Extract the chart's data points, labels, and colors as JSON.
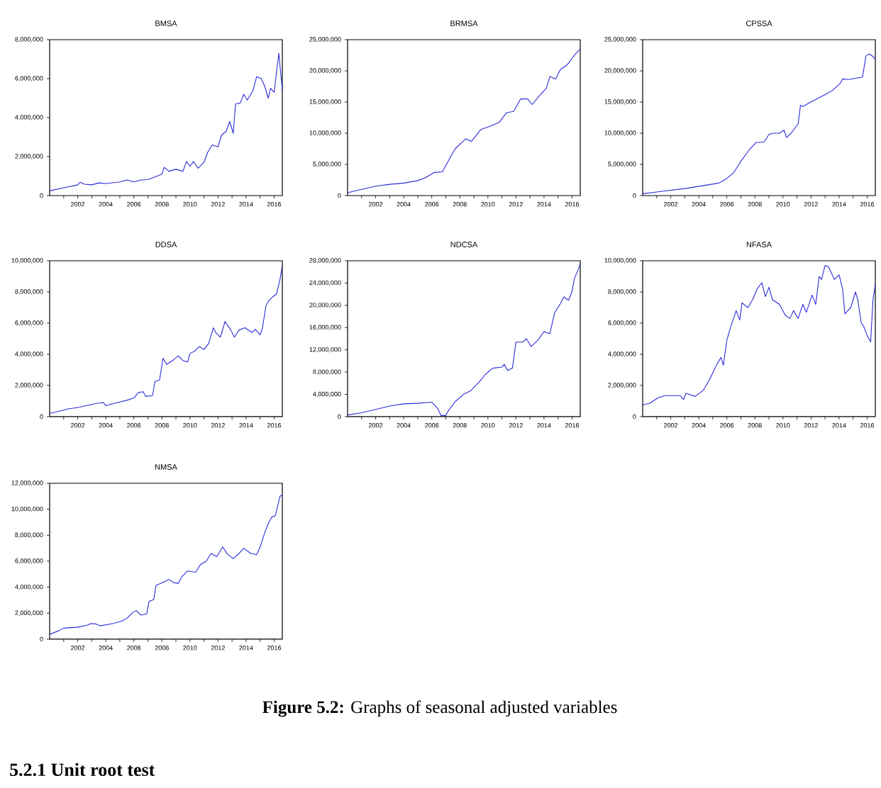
{
  "chart_data": [
    {
      "type": "line",
      "title": "BMSA",
      "color": "#2b2bd9",
      "xlim": [
        "2000-01",
        "2016-08"
      ],
      "ylim": [
        0,
        8000000
      ],
      "xticks": [
        {
          "value": "2001",
          "label": null
        },
        {
          "value": "2002",
          "label": "2002"
        },
        {
          "value": "2003",
          "label": null
        },
        {
          "value": "2004",
          "label": "2004"
        },
        {
          "value": "2005",
          "label": null
        },
        {
          "value": "2006",
          "label": "2006"
        },
        {
          "value": "2007",
          "label": null
        },
        {
          "value": "2008",
          "label": "2008"
        },
        {
          "value": "2009",
          "label": null
        },
        {
          "value": "2010",
          "label": "2010"
        },
        {
          "value": "2011",
          "label": null
        },
        {
          "value": "2012",
          "label": "2012"
        },
        {
          "value": "2013",
          "label": null
        },
        {
          "value": "2014",
          "label": "2014"
        },
        {
          "value": "2015",
          "label": null
        },
        {
          "value": "2016",
          "label": "2016"
        }
      ],
      "yticks": [
        0,
        {
          "value": 2000000,
          "label": "2,000,000"
        },
        {
          "value": 4000000,
          "label": "4,000,000"
        },
        {
          "value": 6000000,
          "label": "6,000,000"
        },
        {
          "value": 8000000,
          "label": "8,000,000"
        }
      ],
      "x": [
        "2000-01",
        "2001-01",
        "2002-01",
        "2002-03",
        "2002-07",
        "2003-01",
        "2003-07",
        "2004-01",
        "2005-01",
        "2005-07",
        "2006-01",
        "2006-07",
        "2007-01",
        "2007-07",
        "2008-01",
        "2008-03",
        "2008-07",
        "2009-01",
        "2009-07",
        "2009-10",
        "2010-01",
        "2010-04",
        "2010-08",
        "2011-01",
        "2011-04",
        "2011-08",
        "2012-01",
        "2012-04",
        "2012-08",
        "2012-11",
        "2013-02",
        "2013-04",
        "2013-08",
        "2013-11",
        "2014-02",
        "2014-07",
        "2014-10",
        "2015-02",
        "2015-05",
        "2015-08",
        "2015-10",
        "2016-01",
        "2016-05",
        "2016-08"
      ],
      "values": [
        240000,
        400000,
        550000,
        680000,
        580000,
        550000,
        650000,
        620000,
        700000,
        800000,
        700000,
        800000,
        820000,
        950000,
        1100000,
        1450000,
        1250000,
        1350000,
        1250000,
        1750000,
        1500000,
        1750000,
        1400000,
        1700000,
        2200000,
        2600000,
        2500000,
        3100000,
        3300000,
        3800000,
        3200000,
        4700000,
        4750000,
        5200000,
        4900000,
        5400000,
        6100000,
        6000000,
        5600000,
        5000000,
        5500000,
        5300000,
        7300000,
        5400000
      ]
    },
    {
      "type": "line",
      "title": "BRMSA",
      "color": "#2b2bd9",
      "xlim": [
        "2000-01",
        "2016-08"
      ],
      "ylim": [
        0,
        25000000
      ],
      "xticks": [
        {
          "value": "2001",
          "label": null
        },
        {
          "value": "2002",
          "label": "2002"
        },
        {
          "value": "2003",
          "label": null
        },
        {
          "value": "2004",
          "label": "2004"
        },
        {
          "value": "2005",
          "label": null
        },
        {
          "value": "2006",
          "label": "2006"
        },
        {
          "value": "2007",
          "label": null
        },
        {
          "value": "2008",
          "label": "2008"
        },
        {
          "value": "2009",
          "label": null
        },
        {
          "value": "2010",
          "label": "2010"
        },
        {
          "value": "2011",
          "label": null
        },
        {
          "value": "2012",
          "label": "2012"
        },
        {
          "value": "2013",
          "label": null
        },
        {
          "value": "2014",
          "label": "2014"
        },
        {
          "value": "2015",
          "label": null
        },
        {
          "value": "2016",
          "label": "2016"
        }
      ],
      "yticks": [
        0,
        {
          "value": 5000000,
          "label": "5,000,000"
        },
        {
          "value": 10000000,
          "label": "10,000,000"
        },
        {
          "value": 15000000,
          "label": "15,000,000"
        },
        {
          "value": 20000000,
          "label": "20,000,000"
        },
        {
          "value": 25000000,
          "label": "25,000,000"
        }
      ],
      "x": [
        "2000-01",
        "2001-01",
        "2002-01",
        "2003-01",
        "2004-01",
        "2005-01",
        "2005-07",
        "2006-03",
        "2006-10",
        "2007-03",
        "2007-09",
        "2008-06",
        "2008-11",
        "2009-07",
        "2010-04",
        "2010-11",
        "2011-05",
        "2011-11",
        "2012-05",
        "2012-11",
        "2013-03",
        "2013-09",
        "2014-03",
        "2014-06",
        "2014-11",
        "2015-03",
        "2015-09",
        "2016-03",
        "2016-08"
      ],
      "values": [
        450000,
        1000000,
        1500000,
        1800000,
        2000000,
        2400000,
        2800000,
        3700000,
        3800000,
        5500000,
        7500000,
        9100000,
        8700000,
        10600000,
        11200000,
        11800000,
        13300000,
        13500000,
        15500000,
        15500000,
        14600000,
        16000000,
        17200000,
        19100000,
        18700000,
        20200000,
        21000000,
        22500000,
        23500000
      ]
    },
    {
      "type": "line",
      "title": "CPSSA",
      "color": "#2b2bd9",
      "xlim": [
        "2000-01",
        "2016-08"
      ],
      "ylim": [
        0,
        25000000
      ],
      "xticks": [
        {
          "value": "2001",
          "label": null
        },
        {
          "value": "2002",
          "label": "2002"
        },
        {
          "value": "2003",
          "label": null
        },
        {
          "value": "2004",
          "label": "2004"
        },
        {
          "value": "2005",
          "label": null
        },
        {
          "value": "2006",
          "label": "2006"
        },
        {
          "value": "2007",
          "label": null
        },
        {
          "value": "2008",
          "label": "2008"
        },
        {
          "value": "2009",
          "label": null
        },
        {
          "value": "2010",
          "label": "2010"
        },
        {
          "value": "2011",
          "label": null
        },
        {
          "value": "2012",
          "label": "2012"
        },
        {
          "value": "2013",
          "label": null
        },
        {
          "value": "2014",
          "label": "2014"
        },
        {
          "value": "2015",
          "label": null
        },
        {
          "value": "2016",
          "label": "2016"
        }
      ],
      "yticks": [
        0,
        {
          "value": 5000000,
          "label": "5,000,000"
        },
        {
          "value": 10000000,
          "label": "10,000,000"
        },
        {
          "value": 15000000,
          "label": "15,000,000"
        },
        {
          "value": 20000000,
          "label": "20,000,000"
        },
        {
          "value": 25000000,
          "label": "25,000,000"
        }
      ],
      "x": [
        "2000-01",
        "2001-02",
        "2002-03",
        "2003-04",
        "2004-05",
        "2005-06",
        "2005-12",
        "2006-07",
        "2007-01",
        "2007-08",
        "2008-02",
        "2008-09",
        "2009-01",
        "2009-05",
        "2009-10",
        "2010-02",
        "2010-04",
        "2010-08",
        "2011-02",
        "2011-04",
        "2011-06",
        "2011-12",
        "2012-06",
        "2013-01",
        "2013-07",
        "2014-02",
        "2014-04",
        "2014-09",
        "2015-03",
        "2015-09",
        "2015-12",
        "2016-03",
        "2016-06",
        "2016-08"
      ],
      "values": [
        300000,
        600000,
        900000,
        1200000,
        1600000,
        2000000,
        2600000,
        3700000,
        5500000,
        7300000,
        8500000,
        8600000,
        9800000,
        10000000,
        10000000,
        10500000,
        9300000,
        10000000,
        11500000,
        14500000,
        14300000,
        14900000,
        15500000,
        16200000,
        16800000,
        18000000,
        18700000,
        18600000,
        18800000,
        19000000,
        22400000,
        22700000,
        22300000,
        21800000
      ]
    },
    {
      "type": "line",
      "title": "DDSA",
      "color": "#2b2bd9",
      "xlim": [
        "2000-01",
        "2016-08"
      ],
      "ylim": [
        0,
        10000000
      ],
      "xticks": [
        {
          "value": "2001",
          "label": null
        },
        {
          "value": "2002",
          "label": "2002"
        },
        {
          "value": "2003",
          "label": null
        },
        {
          "value": "2004",
          "label": "2004"
        },
        {
          "value": "2005",
          "label": null
        },
        {
          "value": "2006",
          "label": "2006"
        },
        {
          "value": "2007",
          "label": null
        },
        {
          "value": "2008",
          "label": "2008"
        },
        {
          "value": "2009",
          "label": null
        },
        {
          "value": "2010",
          "label": "2010"
        },
        {
          "value": "2011",
          "label": null
        },
        {
          "value": "2012",
          "label": "2012"
        },
        {
          "value": "2013",
          "label": null
        },
        {
          "value": "2014",
          "label": "2014"
        },
        {
          "value": "2015",
          "label": null
        },
        {
          "value": "2016",
          "label": "2016"
        }
      ],
      "yticks": [
        0,
        {
          "value": 2000000,
          "label": "2,000,000"
        },
        {
          "value": 4000000,
          "label": "4,000,000"
        },
        {
          "value": 6000000,
          "label": "6,000,000"
        },
        {
          "value": 8000000,
          "label": "8,000,000"
        },
        {
          "value": 10000000,
          "label": "10,000,000"
        }
      ],
      "x": [
        "2000-01",
        "2001-05",
        "2002-02",
        "2002-11",
        "2003-05",
        "2003-11",
        "2004-01",
        "2004-08",
        "2005-07",
        "2006-01",
        "2006-05",
        "2006-09",
        "2006-11",
        "2007-05",
        "2007-07",
        "2007-11",
        "2008-02",
        "2008-05",
        "2008-11",
        "2009-03",
        "2009-07",
        "2009-11",
        "2010-01",
        "2010-05",
        "2010-09",
        "2011-01",
        "2011-05",
        "2011-09",
        "2011-11",
        "2012-03",
        "2012-07",
        "2012-12",
        "2013-03",
        "2013-07",
        "2013-12",
        "2014-06",
        "2014-09",
        "2015-01",
        "2015-03",
        "2015-06",
        "2015-08",
        "2015-12",
        "2016-03",
        "2016-06",
        "2016-08"
      ],
      "values": [
        200000,
        500000,
        600000,
        750000,
        850000,
        900000,
        700000,
        850000,
        1050000,
        1200000,
        1550000,
        1600000,
        1300000,
        1350000,
        2250000,
        2350000,
        3750000,
        3350000,
        3650000,
        3900000,
        3600000,
        3500000,
        4050000,
        4200000,
        4500000,
        4300000,
        4700000,
        5700000,
        5400000,
        5100000,
        6100000,
        5550000,
        5100000,
        5550000,
        5700000,
        5400000,
        5600000,
        5250000,
        5700000,
        7100000,
        7400000,
        7700000,
        7850000,
        8800000,
        9700000
      ]
    },
    {
      "type": "line",
      "title": "NDCSA",
      "color": "#2b2bd9",
      "xlim": [
        "2000-01",
        "2016-08"
      ],
      "ylim": [
        0,
        28000000
      ],
      "xticks": [
        {
          "value": "2001",
          "label": null
        },
        {
          "value": "2002",
          "label": "2002"
        },
        {
          "value": "2003",
          "label": null
        },
        {
          "value": "2004",
          "label": "2004"
        },
        {
          "value": "2005",
          "label": null
        },
        {
          "value": "2006",
          "label": "2006"
        },
        {
          "value": "2007",
          "label": null
        },
        {
          "value": "2008",
          "label": "2008"
        },
        {
          "value": "2009",
          "label": null
        },
        {
          "value": "2010",
          "label": "2010"
        },
        {
          "value": "2011",
          "label": null
        },
        {
          "value": "2012",
          "label": "2012"
        },
        {
          "value": "2013",
          "label": null
        },
        {
          "value": "2014",
          "label": "2014"
        },
        {
          "value": "2015",
          "label": null
        },
        {
          "value": "2016",
          "label": "2016"
        }
      ],
      "yticks": [
        0,
        {
          "value": 4000000,
          "label": "4,000,000"
        },
        {
          "value": 8000000,
          "label": "8,000,000"
        },
        {
          "value": 12000000,
          "label": "12,000,000"
        },
        {
          "value": 16000000,
          "label": "16,000,000"
        },
        {
          "value": 20000000,
          "label": "20,000,000"
        },
        {
          "value": 24000000,
          "label": "24,000,000"
        },
        {
          "value": 28000000,
          "label": "28,000,000"
        }
      ],
      "x": [
        "2000-01",
        "2001-01",
        "2002-01",
        "2003-01",
        "2004-01",
        "2005-01",
        "2006-01",
        "2006-06",
        "2006-09",
        "2007-01",
        "2007-03",
        "2007-09",
        "2008-04",
        "2008-10",
        "2009-05",
        "2009-11",
        "2010-05",
        "2011-01",
        "2011-03",
        "2011-06",
        "2011-10",
        "2012-01",
        "2012-07",
        "2012-10",
        "2013-02",
        "2013-08",
        "2014-01",
        "2014-03",
        "2014-06",
        "2014-10",
        "2015-03",
        "2015-06",
        "2015-10",
        "2016-01",
        "2016-03",
        "2016-06",
        "2016-08"
      ],
      "values": [
        300000,
        700000,
        1300000,
        1900000,
        2300000,
        2400000,
        2600000,
        1500000,
        200000,
        200000,
        1000000,
        2700000,
        4000000,
        4600000,
        6100000,
        7600000,
        8700000,
        8900000,
        9400000,
        8300000,
        8700000,
        13400000,
        13400000,
        14000000,
        12600000,
        13800000,
        15300000,
        15100000,
        14900000,
        18600000,
        20300000,
        21500000,
        20900000,
        22500000,
        24800000,
        26300000,
        27500000
      ]
    },
    {
      "type": "line",
      "title": "NFASA",
      "color": "#2b2bd9",
      "xlim": [
        "2000-01",
        "2016-08"
      ],
      "ylim": [
        0,
        10000000
      ],
      "xticks": [
        {
          "value": "2001",
          "label": null
        },
        {
          "value": "2002",
          "label": "2002"
        },
        {
          "value": "2003",
          "label": null
        },
        {
          "value": "2004",
          "label": "2004"
        },
        {
          "value": "2005",
          "label": null
        },
        {
          "value": "2006",
          "label": "2006"
        },
        {
          "value": "2007",
          "label": null
        },
        {
          "value": "2008",
          "label": "2008"
        },
        {
          "value": "2009",
          "label": null
        },
        {
          "value": "2010",
          "label": "2010"
        },
        {
          "value": "2011",
          "label": null
        },
        {
          "value": "2012",
          "label": "2012"
        },
        {
          "value": "2013",
          "label": null
        },
        {
          "value": "2014",
          "label": "2014"
        },
        {
          "value": "2015",
          "label": null
        },
        {
          "value": "2016",
          "label": "2016"
        }
      ],
      "yticks": [
        0,
        {
          "value": 2000000,
          "label": "2,000,000"
        },
        {
          "value": 4000000,
          "label": "4,000,000"
        },
        {
          "value": 6000000,
          "label": "6,000,000"
        },
        {
          "value": 8000000,
          "label": "8,000,000"
        },
        {
          "value": 10000000,
          "label": "10,000,000"
        }
      ],
      "x": [
        "2000-01",
        "2000-07",
        "2001-02",
        "2001-08",
        "2002-03",
        "2002-09",
        "2002-12",
        "2003-02",
        "2003-06",
        "2003-10",
        "2004-05",
        "2004-11",
        "2005-04",
        "2005-08",
        "2005-10",
        "2006-01",
        "2006-04",
        "2006-09",
        "2006-12",
        "2007-02",
        "2007-07",
        "2007-11",
        "2008-03",
        "2008-07",
        "2008-10",
        "2009-01",
        "2009-04",
        "2009-10",
        "2010-03",
        "2010-07",
        "2010-10",
        "2011-02",
        "2011-06",
        "2011-09",
        "2012-02",
        "2012-05",
        "2012-08",
        "2012-10",
        "2013-01",
        "2013-04",
        "2013-09",
        "2014-01",
        "2014-04",
        "2014-06",
        "2014-11",
        "2015-03",
        "2015-05",
        "2015-08",
        "2015-10",
        "2016-01",
        "2016-04",
        "2016-06",
        "2016-08"
      ],
      "values": [
        750000,
        850000,
        1200000,
        1350000,
        1350000,
        1350000,
        1100000,
        1500000,
        1400000,
        1300000,
        1700000,
        2500000,
        3300000,
        3800000,
        3300000,
        4900000,
        5700000,
        6800000,
        6200000,
        7300000,
        7000000,
        7500000,
        8200000,
        8600000,
        7700000,
        8300000,
        7500000,
        7200000,
        6500000,
        6300000,
        6800000,
        6300000,
        7200000,
        6700000,
        7800000,
        7200000,
        9000000,
        8800000,
        9700000,
        9600000,
        8800000,
        9100000,
        8200000,
        6600000,
        7000000,
        8000000,
        7500000,
        6000000,
        5800000,
        5200000,
        4800000,
        7500000,
        8500000
      ]
    },
    {
      "type": "line",
      "title": "NMSA",
      "color": "#2b2bd9",
      "xlim": [
        "2000-01",
        "2016-08"
      ],
      "ylim": [
        0,
        12000000
      ],
      "xticks": [
        {
          "value": "2001",
          "label": null
        },
        {
          "value": "2002",
          "label": "2002"
        },
        {
          "value": "2003",
          "label": null
        },
        {
          "value": "2004",
          "label": "2004"
        },
        {
          "value": "2005",
          "label": null
        },
        {
          "value": "2006",
          "label": "2006"
        },
        {
          "value": "2007",
          "label": null
        },
        {
          "value": "2008",
          "label": "2008"
        },
        {
          "value": "2009",
          "label": null
        },
        {
          "value": "2010",
          "label": "2010"
        },
        {
          "value": "2011",
          "label": null
        },
        {
          "value": "2012",
          "label": "2012"
        },
        {
          "value": "2013",
          "label": null
        },
        {
          "value": "2014",
          "label": "2014"
        },
        {
          "value": "2015",
          "label": null
        },
        {
          "value": "2016",
          "label": "2016"
        }
      ],
      "yticks": [
        0,
        {
          "value": 2000000,
          "label": "2,000,000"
        },
        {
          "value": 4000000,
          "label": "4,000,000"
        },
        {
          "value": 6000000,
          "label": "6,000,000"
        },
        {
          "value": 8000000,
          "label": "8,000,000"
        },
        {
          "value": 10000000,
          "label": "10,000,000"
        },
        {
          "value": 12000000,
          "label": "12,000,000"
        }
      ],
      "x": [
        "2000-01",
        "2000-09",
        "2001-01",
        "2002-01",
        "2002-10",
        "2002-12",
        "2003-04",
        "2003-08",
        "2004-07",
        "2005-03",
        "2005-07",
        "2005-12",
        "2006-03",
        "2006-07",
        "2006-12",
        "2007-02",
        "2007-06",
        "2007-08",
        "2007-12",
        "2008-05",
        "2008-07",
        "2008-11",
        "2009-03",
        "2009-06",
        "2009-11",
        "2010-06",
        "2010-10",
        "2011-03",
        "2011-07",
        "2011-12",
        "2012-05",
        "2012-09",
        "2013-02",
        "2013-07",
        "2013-11",
        "2014-05",
        "2014-10",
        "2015-01",
        "2015-05",
        "2015-08",
        "2015-11",
        "2016-02",
        "2016-06",
        "2016-08"
      ],
      "values": [
        370000,
        660000,
        850000,
        920000,
        1100000,
        1200000,
        1180000,
        1030000,
        1200000,
        1400000,
        1600000,
        2050000,
        2200000,
        1850000,
        1950000,
        2900000,
        3050000,
        4150000,
        4300000,
        4500000,
        4600000,
        4350000,
        4300000,
        4800000,
        5250000,
        5150000,
        5750000,
        6000000,
        6600000,
        6350000,
        7100000,
        6550000,
        6200000,
        6600000,
        7000000,
        6600000,
        6500000,
        7100000,
        8200000,
        8900000,
        9400000,
        9500000,
        11000000,
        11100000
      ]
    },
    {
      "type": "other",
      "annotations": [
        "**Figure 5.2:** Graphs of seasonal adjusted variables",
        "5.2.1 Unit root test"
      ]
    }
  ]
}
